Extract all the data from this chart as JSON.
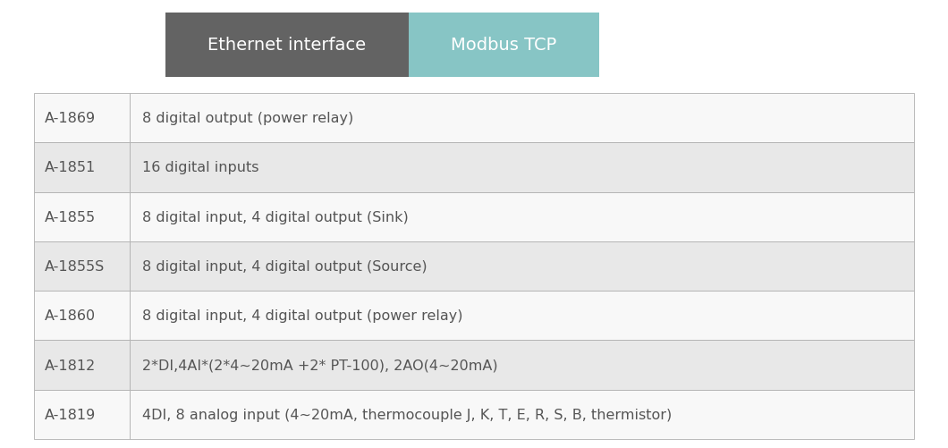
{
  "header_left_text": "Ethernet interface",
  "header_right_text": "Modbus TCP",
  "header_left_color": "#636363",
  "header_right_color": "#87c5c5",
  "header_text_color": "#ffffff",
  "table_rows": [
    [
      "A-1869",
      "8 digital output (power relay)"
    ],
    [
      "A-1851",
      "16 digital inputs"
    ],
    [
      "A-1855",
      "8 digital input, 4 digital output (Sink)"
    ],
    [
      "A-1855S",
      "8 digital input, 4 digital output (Source)"
    ],
    [
      "A-1860",
      "8 digital input, 4 digital output (power relay)"
    ],
    [
      "A-1812",
      "2*DI,4AI*(2*4~20mA +2* PT-100), 2AO(4~20mA)"
    ],
    [
      "A-1819",
      "4DI, 8 analog input (4~20mA, thermocouple J, K, T, E, R, S, B, thermistor)"
    ]
  ],
  "row_color_odd": "#e8e8e8",
  "row_color_even": "#f8f8f8",
  "table_border_color": "#b0b0b0",
  "text_color": "#555555",
  "bg_color": "#ffffff",
  "font_size": 11.5,
  "header_font_size": 14
}
